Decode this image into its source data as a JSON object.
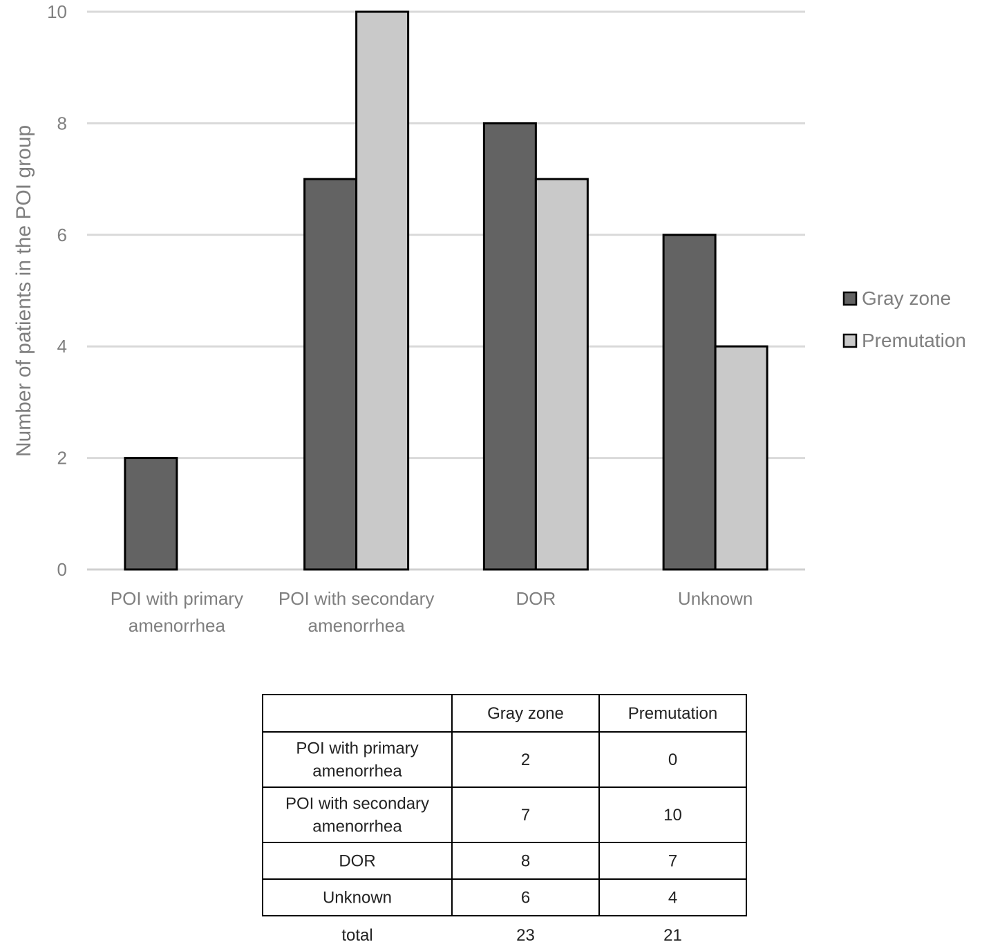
{
  "chart_data": {
    "type": "bar",
    "categories": [
      [
        "POI with primary",
        "amenorrhea"
      ],
      [
        "POI with secondary",
        "amenorrhea"
      ],
      [
        "DOR"
      ],
      [
        "Unknown"
      ]
    ],
    "series": [
      {
        "name": "Gray zone",
        "values": [
          2,
          7,
          8,
          6
        ],
        "color": "#636363"
      },
      {
        "name": "Premutation",
        "values": [
          0,
          10,
          7,
          4
        ],
        "color": "#c9c9c9"
      }
    ],
    "ylabel": "Number of patients in the POI group",
    "ylim": [
      0,
      10
    ],
    "yticks": [
      0,
      2,
      4,
      6,
      8,
      10
    ],
    "grid": true,
    "legend_position": "right"
  },
  "table": {
    "header": [
      "",
      "Gray zone",
      "Premutation"
    ],
    "rows": [
      {
        "label": [
          "POI with primary",
          "amenorrhea"
        ],
        "values": [
          "2",
          "0"
        ]
      },
      {
        "label": [
          "POI with secondary",
          "amenorrhea"
        ],
        "values": [
          "7",
          "10"
        ]
      },
      {
        "label": [
          "DOR"
        ],
        "values": [
          "8",
          "7"
        ]
      },
      {
        "label": [
          "Unknown"
        ],
        "values": [
          "6",
          "4"
        ]
      }
    ],
    "total": {
      "label": "total",
      "values": [
        "23",
        "21"
      ]
    }
  }
}
